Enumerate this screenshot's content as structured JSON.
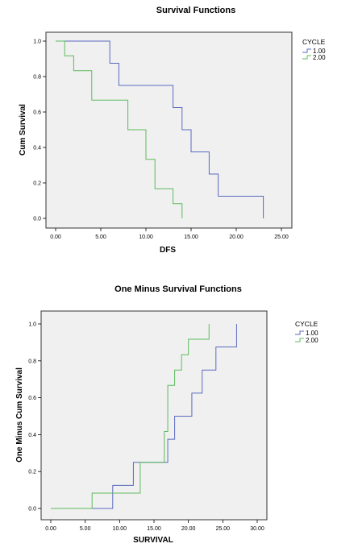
{
  "chart_data": [
    {
      "type": "line",
      "step": true,
      "title": "Survival Functions",
      "xlabel": "DFS",
      "ylabel": "Cum Survival",
      "xlim": [
        0,
        25
      ],
      "ylim": [
        0,
        1.0
      ],
      "x_ticks": [
        "0.00",
        "5.00",
        "10.00",
        "15.00",
        "20.00",
        "25.00"
      ],
      "x_tick_values": [
        0,
        5,
        10,
        15,
        20,
        25
      ],
      "y_ticks": [
        "0.0",
        "0.2",
        "0.4",
        "0.6",
        "0.8",
        "1.0"
      ],
      "y_tick_values": [
        0,
        0.2,
        0.4,
        0.6,
        0.8,
        1.0
      ],
      "legend": {
        "title": "CYCLE",
        "position": "right"
      },
      "grid": false,
      "series": [
        {
          "name": "1.00",
          "color": "#5a6abf",
          "x": [
            0,
            6,
            7,
            13,
            14,
            15,
            17,
            18,
            23
          ],
          "y": [
            1.0,
            0.875,
            0.75,
            0.625,
            0.5,
            0.375,
            0.25,
            0.125,
            0.0
          ]
        },
        {
          "name": "2.00",
          "color": "#5dbb5d",
          "x": [
            0,
            1,
            2,
            4,
            8,
            10,
            11,
            13,
            14
          ],
          "y": [
            1.0,
            0.917,
            0.833,
            0.667,
            0.5,
            0.333,
            0.167,
            0.083,
            0.0
          ]
        }
      ]
    },
    {
      "type": "line",
      "step": true,
      "title": "One Minus Survival Functions",
      "xlabel": "SURVIVAL",
      "ylabel": "One Minus Cum Survival",
      "xlim": [
        0,
        30
      ],
      "ylim": [
        0,
        1.0
      ],
      "x_ticks": [
        "0.00",
        "5.00",
        "10.00",
        "15.00",
        "20.00",
        "25.00",
        "30.00"
      ],
      "x_tick_values": [
        0,
        5,
        10,
        15,
        20,
        25,
        30
      ],
      "y_ticks": [
        "0.0",
        "0.2",
        "0.4",
        "0.6",
        "0.8",
        "1.0"
      ],
      "y_tick_values": [
        0,
        0.2,
        0.4,
        0.6,
        0.8,
        1.0
      ],
      "legend": {
        "title": "CYCLE",
        "position": "right"
      },
      "grid": false,
      "series": [
        {
          "name": "1.00",
          "color": "#5a6abf",
          "x": [
            0,
            9,
            12,
            17,
            18,
            19,
            20.5,
            22,
            24,
            27
          ],
          "y": [
            0.0,
            0.125,
            0.25,
            0.375,
            0.5,
            0.5,
            0.625,
            0.75,
            0.875,
            1.0
          ]
        },
        {
          "name": "2.00",
          "color": "#5dbb5d",
          "x": [
            0,
            6,
            13,
            16.5,
            17,
            18,
            19,
            20,
            23
          ],
          "y": [
            0.0,
            0.083,
            0.25,
            0.417,
            0.667,
            0.75,
            0.833,
            0.917,
            1.0
          ]
        }
      ]
    }
  ]
}
